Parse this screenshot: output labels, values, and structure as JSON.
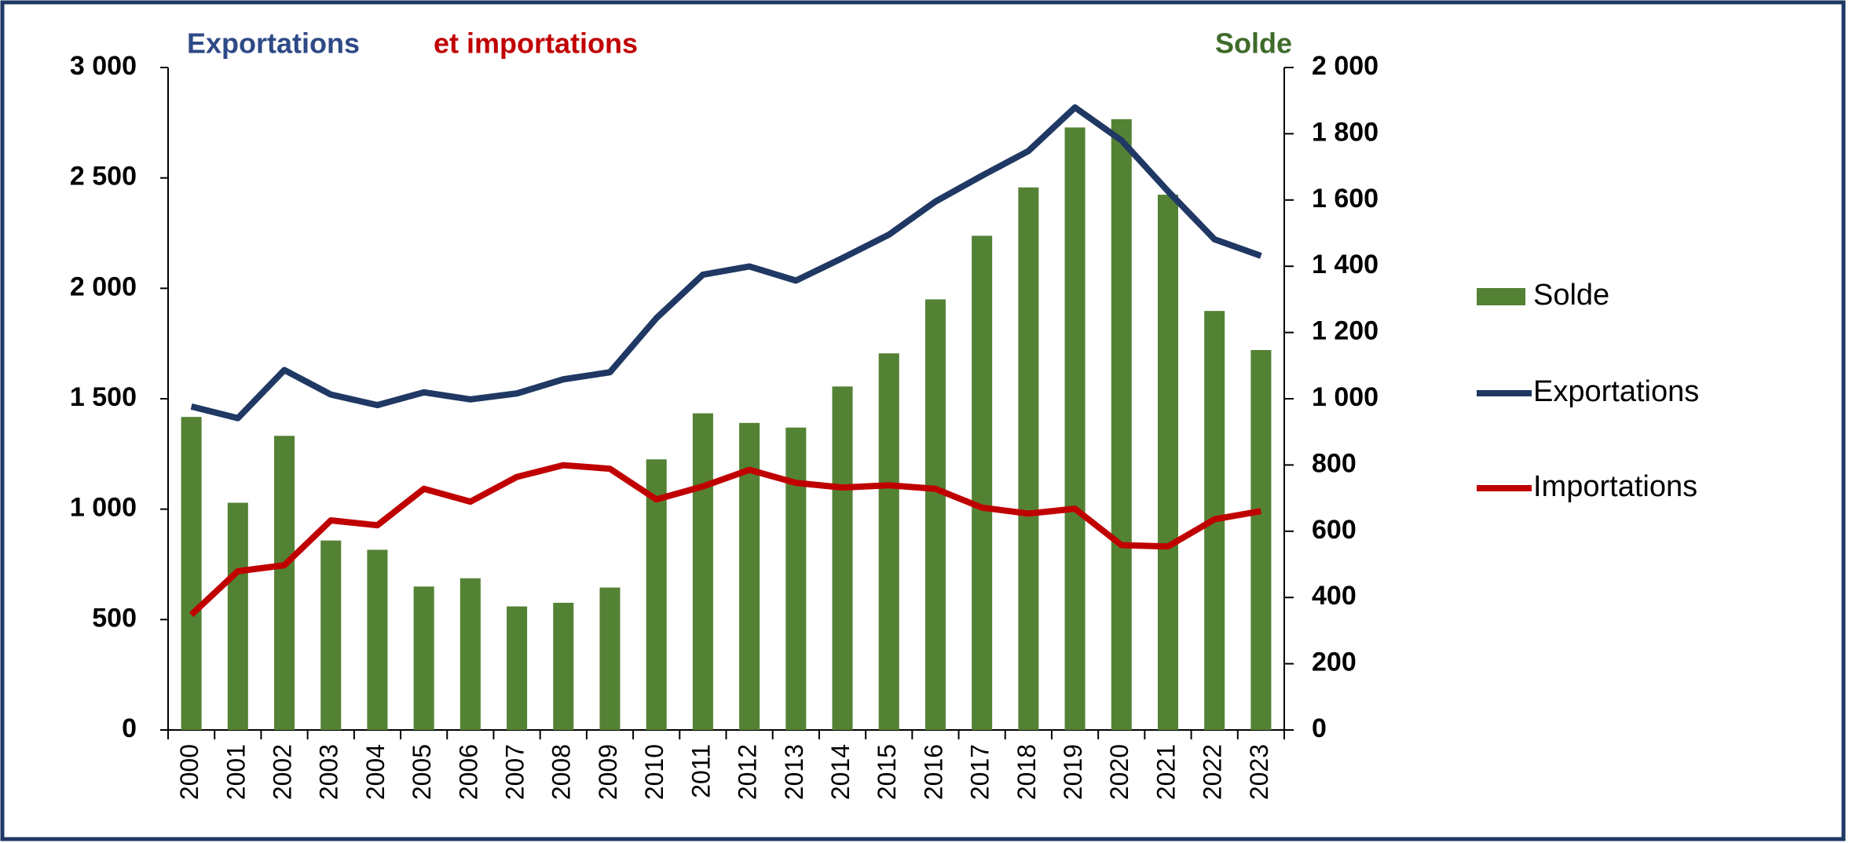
{
  "chart_data": {
    "type": "bar-line",
    "annotations": [
      {
        "text": "Exportations",
        "color": "#2e4a86"
      },
      {
        "text": "et importations",
        "color": "#c00000"
      },
      {
        "text": "Solde",
        "color": "#3f6b2a"
      }
    ],
    "categories": [
      "2000",
      "2001",
      "2002",
      "2003",
      "2004",
      "2005",
      "2006",
      "2007",
      "2008",
      "2009",
      "2010",
      "2011",
      "2012",
      "2013",
      "2014",
      "2015",
      "2016",
      "2017",
      "2018",
      "2019",
      "2020",
      "2021",
      "2022",
      "2023"
    ],
    "series": [
      {
        "name": "Solde",
        "type": "bar",
        "axis": "y2",
        "color": "#548235",
        "values": [
          945,
          686,
          888,
          572,
          544,
          433,
          458,
          373,
          384,
          430,
          817,
          956,
          927,
          913,
          1037,
          1137,
          1300,
          1492,
          1638,
          1819,
          1844,
          1616,
          1265,
          1147
        ]
      },
      {
        "name": "Exportations",
        "type": "line",
        "axis": "y",
        "color": "#1f3864",
        "values": [
          1465,
          1412,
          1630,
          1519,
          1471,
          1529,
          1497,
          1524,
          1588,
          1620,
          1865,
          2062,
          2099,
          2035,
          2137,
          2243,
          2393,
          2510,
          2622,
          2819,
          2670,
          2440,
          2222,
          2147
        ]
      },
      {
        "name": "Importations",
        "type": "line",
        "axis": "y",
        "color": "#c00000",
        "values": [
          522,
          719,
          746,
          949,
          927,
          1092,
          1034,
          1146,
          1199,
          1183,
          1044,
          1103,
          1178,
          1119,
          1098,
          1108,
          1092,
          1007,
          980,
          1002,
          837,
          831,
          954,
          991
        ]
      }
    ],
    "ylim": [
      0,
      3000
    ],
    "yticks": [
      0,
      500,
      {
        "value": 1000,
        "label": "1 000"
      },
      {
        "value": 1500,
        "label": "1 500"
      },
      {
        "value": 2000,
        "label": "2 000"
      },
      {
        "value": 2500,
        "label": "2 500"
      },
      {
        "value": 3000,
        "label": "3 000"
      }
    ],
    "y2lim": [
      0,
      2000
    ],
    "y2ticks": [
      0,
      200,
      400,
      600,
      800,
      {
        "value": 1000,
        "label": "1 000"
      },
      {
        "value": 1200,
        "label": "1 200"
      },
      {
        "value": 1400,
        "label": "1 400"
      },
      {
        "value": 1600,
        "label": "1 600"
      },
      {
        "value": 1800,
        "label": "1 800"
      },
      {
        "value": 2000,
        "label": "2 000"
      }
    ],
    "legend": "right"
  }
}
